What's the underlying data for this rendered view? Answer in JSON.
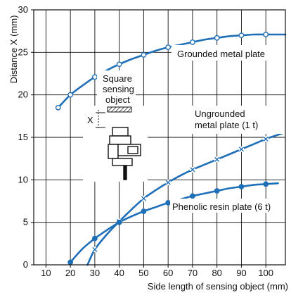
{
  "chart_data": {
    "type": "line",
    "xlabel": "Side length of sensing object (mm)",
    "ylabel": "Distance X (mm)",
    "xlim": [
      5,
      108
    ],
    "ylim": [
      0,
      30
    ],
    "x_ticks": [
      10,
      20,
      30,
      40,
      50,
      60,
      70,
      80,
      90,
      100
    ],
    "y_ticks": [
      0,
      5,
      10,
      15,
      20,
      25,
      30
    ],
    "grid": true,
    "series": [
      {
        "name": "Grounded metal plate",
        "marker": "open-circle",
        "color": "#1f6fb8",
        "x": [
          15,
          20,
          30,
          40,
          50,
          60,
          70,
          80,
          90,
          100
        ],
        "y": [
          18.5,
          20.0,
          22.1,
          23.6,
          24.7,
          25.6,
          26.2,
          26.7,
          27.0,
          27.1
        ],
        "curve_x": [
          15,
          20,
          25,
          30,
          35,
          40,
          45,
          50,
          55,
          60,
          65,
          70,
          75,
          80,
          85,
          90,
          95,
          100,
          105,
          108
        ],
        "curve_y": [
          18.5,
          20.0,
          21.1,
          22.1,
          22.9,
          23.6,
          24.2,
          24.7,
          25.2,
          25.6,
          25.9,
          26.2,
          26.5,
          26.7,
          26.9,
          27.0,
          27.1,
          27.1,
          27.1,
          27.1
        ]
      },
      {
        "name": "Ungrounded metal plate (1 t)",
        "marker": "x",
        "color": "#1f6fb8",
        "x": [
          30,
          40,
          50,
          60,
          70,
          80,
          90,
          100
        ],
        "y": [
          1.8,
          5.1,
          7.8,
          9.7,
          11.2,
          12.4,
          13.6,
          14.8
        ],
        "curve_x": [
          27,
          30,
          35,
          40,
          45,
          50,
          55,
          60,
          65,
          70,
          75,
          80,
          85,
          90,
          95,
          100,
          105,
          107
        ],
        "curve_y": [
          0,
          1.8,
          3.6,
          5.1,
          6.5,
          7.8,
          8.8,
          9.7,
          10.5,
          11.2,
          11.8,
          12.4,
          13.0,
          13.6,
          14.2,
          14.8,
          15.3,
          15.5
        ]
      },
      {
        "name": "Phenolic resin plate (6 t)",
        "marker": "filled-circle",
        "color": "#1f6fb8",
        "x": [
          20,
          30,
          40,
          50,
          60,
          70,
          80,
          90,
          100
        ],
        "y": [
          0.3,
          3.1,
          5.0,
          6.3,
          7.3,
          8.1,
          8.7,
          9.2,
          9.5
        ],
        "curve_x": [
          20,
          25,
          30,
          35,
          40,
          45,
          50,
          55,
          60,
          65,
          70,
          75,
          80,
          85,
          90,
          95,
          100,
          105
        ],
        "curve_y": [
          0.3,
          1.9,
          3.1,
          4.1,
          5.0,
          5.7,
          6.3,
          6.8,
          7.3,
          7.7,
          8.1,
          8.4,
          8.7,
          9.0,
          9.2,
          9.4,
          9.5,
          9.6
        ]
      }
    ],
    "annotations": {
      "sensing_object_label": "Square sensing object",
      "distance_symbol": "X"
    }
  }
}
